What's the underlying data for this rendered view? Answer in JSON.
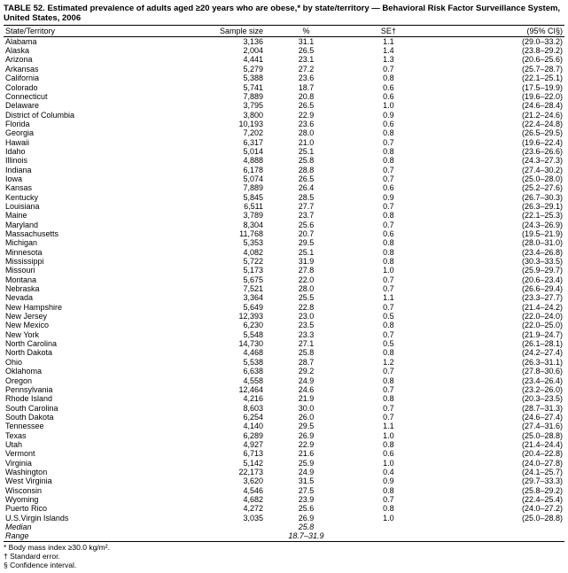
{
  "title": "TABLE 52. Estimated prevalence of adults aged ≥20 years who are obese,* by state/territory — Behavioral Risk Factor Surveillance System, United States, 2006",
  "columns": {
    "state": "State/Territory",
    "sample": "Sample size",
    "pct": "%",
    "se": "SE†",
    "ci": "(95% CI§)"
  },
  "rows": [
    {
      "state": "Alabama",
      "sample": "3,136",
      "pct": "31.1",
      "se": "1.1",
      "ci": "(29.0–33.2)"
    },
    {
      "state": "Alaska",
      "sample": "2,004",
      "pct": "26.5",
      "se": "1.4",
      "ci": "(23.8–29.2)"
    },
    {
      "state": "Arizona",
      "sample": "4,441",
      "pct": "23.1",
      "se": "1.3",
      "ci": "(20.6–25.6)"
    },
    {
      "state": "Arkansas",
      "sample": "5,279",
      "pct": "27.2",
      "se": "0.7",
      "ci": "(25.7–28.7)"
    },
    {
      "state": "California",
      "sample": "5,388",
      "pct": "23.6",
      "se": "0.8",
      "ci": "(22.1–25.1)"
    },
    {
      "state": "Colorado",
      "sample": "5,741",
      "pct": "18.7",
      "se": "0.6",
      "ci": "(17.5–19.9)"
    },
    {
      "state": "Connecticut",
      "sample": "7,889",
      "pct": "20.8",
      "se": "0.6",
      "ci": "(19.6–22.0)"
    },
    {
      "state": "Delaware",
      "sample": "3,795",
      "pct": "26.5",
      "se": "1.0",
      "ci": "(24.6–28.4)"
    },
    {
      "state": "District of Columbia",
      "sample": "3,800",
      "pct": "22.9",
      "se": "0.9",
      "ci": "(21.2–24.6)"
    },
    {
      "state": "Florida",
      "sample": "10,193",
      "pct": "23.6",
      "se": "0.6",
      "ci": "(22.4–24.8)"
    },
    {
      "state": "Georgia",
      "sample": "7,202",
      "pct": "28.0",
      "se": "0.8",
      "ci": "(26.5–29.5)"
    },
    {
      "state": "Hawaii",
      "sample": "6,317",
      "pct": "21.0",
      "se": "0.7",
      "ci": "(19.6–22.4)"
    },
    {
      "state": "Idaho",
      "sample": "5,014",
      "pct": "25.1",
      "se": "0.8",
      "ci": "(23.6–26.6)"
    },
    {
      "state": "Illinois",
      "sample": "4,888",
      "pct": "25.8",
      "se": "0.8",
      "ci": "(24.3–27.3)"
    },
    {
      "state": "Indiana",
      "sample": "6,178",
      "pct": "28.8",
      "se": "0.7",
      "ci": "(27.4–30.2)"
    },
    {
      "state": "Iowa",
      "sample": "5,074",
      "pct": "26.5",
      "se": "0.7",
      "ci": "(25.0–28.0)"
    },
    {
      "state": "Kansas",
      "sample": "7,889",
      "pct": "26.4",
      "se": "0.6",
      "ci": "(25.2–27.6)"
    },
    {
      "state": "Kentucky",
      "sample": "5,845",
      "pct": "28.5",
      "se": "0.9",
      "ci": "(26.7–30.3)"
    },
    {
      "state": "Louisiana",
      "sample": "6,511",
      "pct": "27.7",
      "se": "0.7",
      "ci": "(26.3–29.1)"
    },
    {
      "state": "Maine",
      "sample": "3,789",
      "pct": "23.7",
      "se": "0.8",
      "ci": "(22.1–25.3)"
    },
    {
      "state": "Maryland",
      "sample": "8,304",
      "pct": "25.6",
      "se": "0.7",
      "ci": "(24.3–26.9)"
    },
    {
      "state": "Massachusetts",
      "sample": "11,768",
      "pct": "20.7",
      "se": "0.6",
      "ci": "(19.5–21.9)"
    },
    {
      "state": "Michigan",
      "sample": "5,353",
      "pct": "29.5",
      "se": "0.8",
      "ci": "(28.0–31.0)"
    },
    {
      "state": "Minnesota",
      "sample": "4,082",
      "pct": "25.1",
      "se": "0.8",
      "ci": "(23.4–26.8)"
    },
    {
      "state": "Mississippi",
      "sample": "5,722",
      "pct": "31.9",
      "se": "0.8",
      "ci": "(30.3–33.5)"
    },
    {
      "state": "Missouri",
      "sample": "5,173",
      "pct": "27.8",
      "se": "1.0",
      "ci": "(25.9–29.7)"
    },
    {
      "state": "Montana",
      "sample": "5,675",
      "pct": "22.0",
      "se": "0.7",
      "ci": "(20.6–23.4)"
    },
    {
      "state": "Nebraska",
      "sample": "7,521",
      "pct": "28.0",
      "se": "0.7",
      "ci": "(26.6–29.4)"
    },
    {
      "state": "Nevada",
      "sample": "3,364",
      "pct": "25.5",
      "se": "1.1",
      "ci": "(23.3–27.7)"
    },
    {
      "state": "New Hampshire",
      "sample": "5,649",
      "pct": "22.8",
      "se": "0.7",
      "ci": "(21.4–24.2)"
    },
    {
      "state": "New Jersey",
      "sample": "12,393",
      "pct": "23.0",
      "se": "0.5",
      "ci": "(22.0–24.0)"
    },
    {
      "state": "New Mexico",
      "sample": "6,230",
      "pct": "23.5",
      "se": "0.8",
      "ci": "(22.0–25.0)"
    },
    {
      "state": "New York",
      "sample": "5,548",
      "pct": "23.3",
      "se": "0.7",
      "ci": "(21.9–24.7)"
    },
    {
      "state": "North Carolina",
      "sample": "14,730",
      "pct": "27.1",
      "se": "0.5",
      "ci": "(26.1–28.1)"
    },
    {
      "state": "North Dakota",
      "sample": "4,468",
      "pct": "25.8",
      "se": "0.8",
      "ci": "(24.2–27.4)"
    },
    {
      "state": "Ohio",
      "sample": "5,538",
      "pct": "28.7",
      "se": "1.2",
      "ci": "(26.3–31.1)"
    },
    {
      "state": "Oklahoma",
      "sample": "6,638",
      "pct": "29.2",
      "se": "0.7",
      "ci": "(27.8–30.6)"
    },
    {
      "state": "Oregon",
      "sample": "4,558",
      "pct": "24.9",
      "se": "0.8",
      "ci": "(23.4–26.4)"
    },
    {
      "state": "Pennsylvania",
      "sample": "12,464",
      "pct": "24.6",
      "se": "0.7",
      "ci": "(23.2–26.0)"
    },
    {
      "state": "Rhode Island",
      "sample": "4,216",
      "pct": "21.9",
      "se": "0.8",
      "ci": "(20.3–23.5)"
    },
    {
      "state": "South Carolina",
      "sample": "8,603",
      "pct": "30.0",
      "se": "0.7",
      "ci": "(28.7–31.3)"
    },
    {
      "state": "South Dakota",
      "sample": "6,254",
      "pct": "26.0",
      "se": "0.7",
      "ci": "(24.6–27.4)"
    },
    {
      "state": "Tennessee",
      "sample": "4,140",
      "pct": "29.5",
      "se": "1.1",
      "ci": "(27.4–31.6)"
    },
    {
      "state": "Texas",
      "sample": "6,289",
      "pct": "26.9",
      "se": "1.0",
      "ci": "(25.0–28.8)"
    },
    {
      "state": "Utah",
      "sample": "4,927",
      "pct": "22.9",
      "se": "0.8",
      "ci": "(21.4–24.4)"
    },
    {
      "state": "Vermont",
      "sample": "6,713",
      "pct": "21.6",
      "se": "0.6",
      "ci": "(20.4–22.8)"
    },
    {
      "state": "Virginia",
      "sample": "5,142",
      "pct": "25.9",
      "se": "1.0",
      "ci": "(24.0–27.8)"
    },
    {
      "state": "Washington",
      "sample": "22,173",
      "pct": "24.9",
      "se": "0.4",
      "ci": "(24.1–25.7)"
    },
    {
      "state": "West Virginia",
      "sample": "3,620",
      "pct": "31.5",
      "se": "0.9",
      "ci": "(29.7–33.3)"
    },
    {
      "state": "Wisconsin",
      "sample": "4,546",
      "pct": "27.5",
      "se": "0.8",
      "ci": "(25.8–29.2)"
    },
    {
      "state": "Wyoming",
      "sample": "4,682",
      "pct": "23.9",
      "se": "0.7",
      "ci": "(22.4–25.4)"
    },
    {
      "state": "Puerto Rico",
      "sample": "4,272",
      "pct": "25.6",
      "se": "0.8",
      "ci": "(24.0–27.2)"
    },
    {
      "state": "U.S.Virgin Islands",
      "sample": "3,035",
      "pct": "26.9",
      "se": "1.0",
      "ci": "(25.0–28.8)"
    }
  ],
  "median": {
    "label": "Median",
    "pct": "25.8"
  },
  "range": {
    "label": "Range",
    "pct": "18.7–31.9"
  },
  "footnotes": [
    "* Body mass index ≥30.0 kg/m².",
    "† Standard error.",
    "§ Confidence interval."
  ]
}
